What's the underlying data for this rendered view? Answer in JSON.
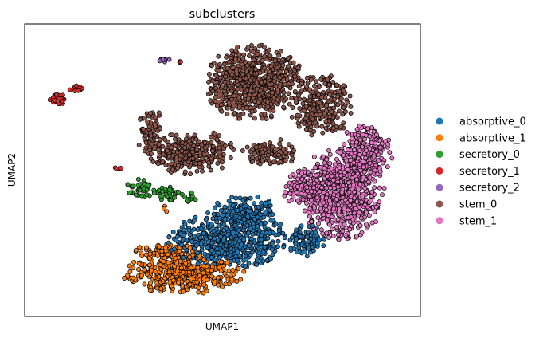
{
  "chart_data": {
    "type": "scatter",
    "title": "subclusters",
    "xlabel": "UMAP1",
    "ylabel": "UMAP2",
    "xticks": false,
    "yticks": false,
    "grid": false,
    "legend_position": "right",
    "xlim": [
      0,
      10
    ],
    "ylim": [
      0,
      10
    ],
    "point_edge_color": "#000000",
    "series": [
      {
        "name": "absorptive_0",
        "color": "#1f77b4",
        "regions": [
          {
            "cx": 5.2,
            "cy": 2.6,
            "rx": 1.6,
            "ry": 0.95,
            "n": 520
          },
          {
            "cx": 5.5,
            "cy": 3.6,
            "rx": 0.9,
            "ry": 0.55,
            "n": 160
          },
          {
            "cx": 7.1,
            "cy": 2.6,
            "rx": 0.5,
            "ry": 0.6,
            "n": 90
          }
        ]
      },
      {
        "name": "absorptive_1",
        "color": "#ff7f0e",
        "regions": [
          {
            "cx": 4.0,
            "cy": 1.45,
            "rx": 1.55,
            "ry": 0.7,
            "n": 430
          },
          {
            "cx": 3.6,
            "cy": 2.2,
            "rx": 0.85,
            "ry": 0.3,
            "n": 70
          },
          {
            "cx": 3.55,
            "cy": 3.65,
            "rx": 0.05,
            "ry": 0.15,
            "n": 3
          }
        ]
      },
      {
        "name": "secretory_0",
        "color": "#2ca02c",
        "regions": [
          {
            "cx": 3.0,
            "cy": 4.4,
            "rx": 0.45,
            "ry": 0.35,
            "n": 45
          },
          {
            "cx": 3.6,
            "cy": 4.2,
            "rx": 0.3,
            "ry": 0.25,
            "n": 25
          },
          {
            "cx": 4.15,
            "cy": 4.05,
            "rx": 0.25,
            "ry": 0.2,
            "n": 12
          }
        ]
      },
      {
        "name": "secretory_1",
        "color": "#d62728",
        "regions": [
          {
            "cx": 0.85,
            "cy": 7.45,
            "rx": 0.25,
            "ry": 0.2,
            "n": 30
          },
          {
            "cx": 1.3,
            "cy": 7.8,
            "rx": 0.2,
            "ry": 0.12,
            "n": 12
          },
          {
            "cx": 2.35,
            "cy": 5.05,
            "rx": 0.1,
            "ry": 0.05,
            "n": 5
          },
          {
            "cx": 3.9,
            "cy": 8.7,
            "rx": 0.08,
            "ry": 0.04,
            "n": 3
          }
        ]
      },
      {
        "name": "secretory_2",
        "color": "#9467bd",
        "regions": [
          {
            "cx": 3.55,
            "cy": 8.75,
            "rx": 0.2,
            "ry": 0.06,
            "n": 10
          }
        ]
      },
      {
        "name": "stem_0",
        "color": "#8c564b",
        "regions": [
          {
            "cx": 5.8,
            "cy": 8.0,
            "rx": 1.3,
            "ry": 1.3,
            "n": 720
          },
          {
            "cx": 7.5,
            "cy": 7.2,
            "rx": 0.8,
            "ry": 1.1,
            "n": 260
          },
          {
            "cx": 4.2,
            "cy": 5.6,
            "rx": 1.1,
            "ry": 0.8,
            "n": 300
          },
          {
            "cx": 3.2,
            "cy": 6.3,
            "rx": 0.4,
            "ry": 0.8,
            "n": 70
          },
          {
            "cx": 6.2,
            "cy": 5.6,
            "rx": 0.7,
            "ry": 0.5,
            "n": 110
          }
        ]
      },
      {
        "name": "stem_1",
        "color": "#e377c2",
        "regions": [
          {
            "cx": 8.0,
            "cy": 4.2,
            "rx": 1.1,
            "ry": 1.6,
            "n": 680
          },
          {
            "cx": 8.6,
            "cy": 5.6,
            "rx": 0.7,
            "ry": 1.0,
            "n": 220
          },
          {
            "cx": 7.0,
            "cy": 4.4,
            "rx": 0.5,
            "ry": 0.6,
            "n": 100
          }
        ]
      }
    ]
  }
}
